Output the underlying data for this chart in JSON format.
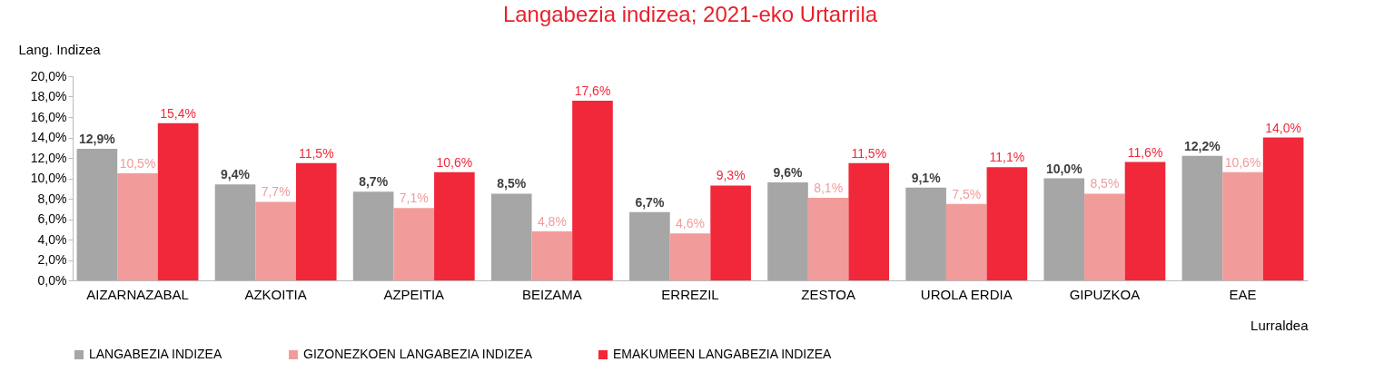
{
  "chart_data": {
    "type": "bar",
    "title": "Langabezia indizea; 2021-eko Urtarrila",
    "xlabel": "Lurraldea",
    "ylabel": "Lang. Indizea",
    "categories": [
      "AIZARNAZABAL",
      "AZKOITIA",
      "AZPEITIA",
      "BEIZAMA",
      "ERREZIL",
      "ZESTOA",
      "UROLA ERDIA",
      "GIPUZKOA",
      "EAE"
    ],
    "series": [
      {
        "name": "LANGABEZIA INDIZEA",
        "color": "#a6a6a6",
        "values": [
          12.9,
          9.4,
          8.7,
          8.5,
          6.7,
          9.6,
          9.1,
          10.0,
          12.2
        ],
        "value_labels": [
          "12,9%",
          "9,4%",
          "8,7%",
          "8,5%",
          "6,7%",
          "9,6%",
          "9,1%",
          "10,0%",
          "12,2%"
        ]
      },
      {
        "name": "GIZONEZKOEN LANGABEZIA INDIZEA",
        "color": "#f29b9b",
        "values": [
          10.5,
          7.7,
          7.1,
          4.8,
          4.6,
          8.1,
          7.5,
          8.5,
          10.6
        ],
        "value_labels": [
          "10,5%",
          "7,7%",
          "7,1%",
          "4,8%",
          "4,6%",
          "8,1%",
          "7,5%",
          "8,5%",
          "10,6%"
        ]
      },
      {
        "name": "EMAKUMEEN LANGABEZIA INDIZEA",
        "color": "#f0283a",
        "values": [
          15.4,
          11.5,
          10.6,
          17.6,
          9.3,
          11.5,
          11.1,
          11.6,
          14.0
        ],
        "value_labels": [
          "15,4%",
          "11,5%",
          "10,6%",
          "17,6%",
          "9,3%",
          "11,5%",
          "11,1%",
          "11,6%",
          "14,0%"
        ]
      }
    ],
    "ylim": [
      0,
      20
    ],
    "yticks": [
      {
        "value": 0,
        "label": "0,0%"
      },
      {
        "value": 2,
        "label": "2,0%"
      },
      {
        "value": 4,
        "label": "4,0%"
      },
      {
        "value": 6,
        "label": "6,0%"
      },
      {
        "value": 8,
        "label": "8,0%"
      },
      {
        "value": 10,
        "label": "10,0%"
      },
      {
        "value": 12,
        "label": "12,0%"
      },
      {
        "value": 14,
        "label": "14,0%"
      },
      {
        "value": 16,
        "label": "16,0%"
      },
      {
        "value": 18,
        "label": "18,0%"
      },
      {
        "value": 20,
        "label": "20,0%"
      }
    ],
    "grid": false,
    "legend": "bottom"
  }
}
